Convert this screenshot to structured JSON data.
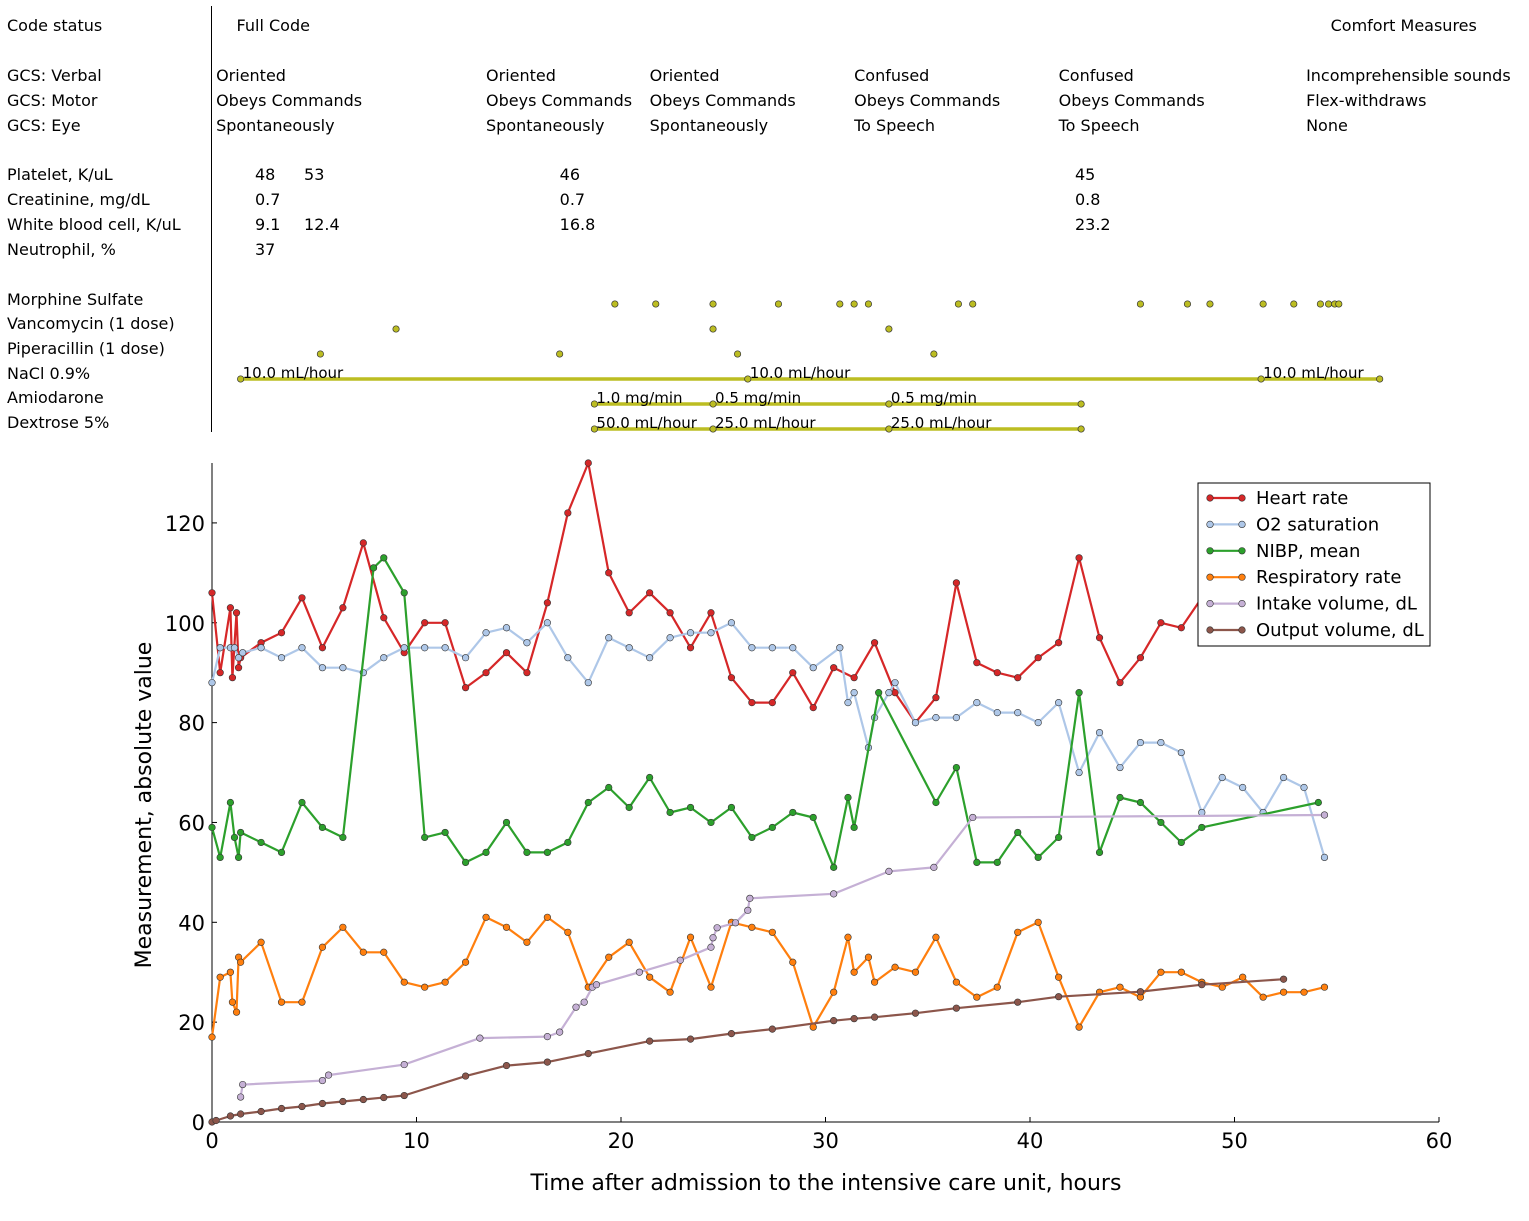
{
  "panel": {
    "rows": {
      "code_status": "Code status",
      "gcs_verbal": "GCS: Verbal",
      "gcs_motor": "GCS: Motor",
      "gcs_eye": "GCS: Eye",
      "platelet": "Platelet, K/uL",
      "creatinine": "Creatinine, mg/dL",
      "wbc": "White blood cell, K/uL",
      "neutrophil": "Neutrophil, %",
      "morphine": "Morphine Sulfate",
      "vancomycin": "Vancomycin (1 dose)",
      "piperacillin": "Piperacillin (1 dose)",
      "nacl": "NaCl 0.9%",
      "amiodarone": "Amiodarone",
      "dextrose": "Dextrose 5%"
    },
    "code_status": [
      {
        "t": 1.2,
        "text": "Full Code"
      },
      {
        "t": 54.7,
        "text": "Comfort Measures"
      }
    ],
    "gcs": [
      {
        "t": 0.2,
        "verbal": "Oriented",
        "motor": "Obeys Commands",
        "eye": "Spontaneously"
      },
      {
        "t": 13.4,
        "verbal": "Oriented",
        "motor": "Obeys Commands",
        "eye": "Spontaneously"
      },
      {
        "t": 21.4,
        "verbal": "Oriented",
        "motor": "Obeys Commands",
        "eye": "Spontaneously"
      },
      {
        "t": 31.4,
        "verbal": "Confused",
        "motor": "Obeys Commands",
        "eye": "To Speech"
      },
      {
        "t": 41.4,
        "verbal": "Confused",
        "motor": "Obeys Commands",
        "eye": "To Speech"
      },
      {
        "t": 53.5,
        "verbal": "Incomprehensible sounds",
        "motor": "Flex-withdraws",
        "eye": "None"
      }
    ],
    "labs": {
      "platelet": [
        {
          "t": 2.1,
          "v": "48"
        },
        {
          "t": 4.5,
          "v": "53"
        },
        {
          "t": 17.0,
          "v": "46"
        },
        {
          "t": 42.2,
          "v": "45"
        }
      ],
      "creatinine": [
        {
          "t": 2.1,
          "v": "0.7"
        },
        {
          "t": 17.0,
          "v": "0.7"
        },
        {
          "t": 42.2,
          "v": "0.8"
        }
      ],
      "wbc": [
        {
          "t": 2.1,
          "v": "9.1"
        },
        {
          "t": 4.5,
          "v": "12.4"
        },
        {
          "t": 17.0,
          "v": "16.8"
        },
        {
          "t": 42.2,
          "v": "23.2"
        }
      ],
      "neutrophil": [
        {
          "t": 2.1,
          "v": "37"
        }
      ]
    },
    "doses": {
      "morphine": [
        19.7,
        21.7,
        24.5,
        27.7,
        30.7,
        31.4,
        32.1,
        36.5,
        37.2,
        45.4,
        47.7,
        48.8,
        51.4,
        52.9,
        54.2,
        54.6,
        54.9,
        55.1
      ],
      "vancomycin": [
        9.0,
        24.5,
        33.1
      ],
      "piperacillin": [
        5.3,
        17.0,
        25.7,
        35.3
      ]
    },
    "infusions": {
      "nacl": [
        {
          "t0": 1.4,
          "t1": 26.2,
          "rate": "10.0 mL/hour"
        },
        {
          "t0": 26.2,
          "t1": 51.3,
          "rate": "10.0 mL/hour"
        },
        {
          "t0": 51.3,
          "t1": 57.1,
          "rate": "10.0 mL/hour"
        }
      ],
      "amiodarone": [
        {
          "t0": 18.7,
          "t1": 24.5,
          "rate": "1.0 mg/min"
        },
        {
          "t0": 24.5,
          "t1": 33.1,
          "rate": "0.5 mg/min"
        },
        {
          "t0": 33.1,
          "t1": 42.5,
          "rate": "0.5 mg/min"
        }
      ],
      "dextrose": [
        {
          "t0": 18.7,
          "t1": 24.5,
          "rate": "50.0 mL/hour"
        },
        {
          "t0": 24.5,
          "t1": 33.1,
          "rate": "25.0 mL/hour"
        },
        {
          "t0": 33.1,
          "t1": 42.5,
          "rate": "25.0 mL/hour"
        }
      ]
    },
    "marker_color": "#bcbd22"
  },
  "chart_data": {
    "type": "line",
    "xlabel": "Time after admission to the intensive care unit, hours",
    "ylabel": "Measurement, absolute value",
    "xlim": [
      0,
      60
    ],
    "ylim": [
      0,
      132
    ],
    "xticks": [
      0,
      10,
      20,
      30,
      40,
      50,
      60
    ],
    "yticks": [
      0,
      20,
      40,
      60,
      80,
      100,
      120
    ],
    "grid": false,
    "legend_position": "top-right",
    "series": [
      {
        "name": "Heart rate",
        "color": "#d62728",
        "x": [
          0.0,
          0.4,
          0.9,
          1.0,
          1.2,
          1.3,
          1.4,
          2.4,
          3.4,
          4.4,
          5.4,
          6.4,
          7.4,
          8.4,
          9.4,
          10.4,
          11.4,
          12.4,
          13.4,
          14.4,
          15.4,
          16.4,
          17.4,
          18.4,
          19.4,
          20.4,
          21.4,
          22.4,
          23.4,
          24.4,
          25.4,
          26.4,
          27.4,
          28.4,
          29.4,
          30.4,
          31.4,
          32.4,
          33.4,
          34.4,
          35.4,
          36.4,
          37.4,
          38.4,
          39.4,
          40.4,
          41.4,
          42.4,
          43.4,
          44.4,
          45.4,
          46.4,
          47.4,
          48.4
        ],
        "y": [
          106,
          90,
          103,
          89,
          102,
          91,
          93,
          96,
          98,
          105,
          95,
          103,
          116,
          101,
          94,
          100,
          100,
          87,
          90,
          94,
          90,
          104,
          122,
          132,
          110,
          102,
          106,
          102,
          95,
          102,
          89,
          84,
          84,
          90,
          83,
          91,
          89,
          96,
          86,
          80,
          85,
          108,
          92,
          90,
          89,
          93,
          96,
          113,
          97,
          88,
          93,
          100,
          99,
          105
        ]
      },
      {
        "name": "O2 saturation",
        "color": "#aec7e8",
        "x": [
          0.0,
          0.4,
          0.9,
          1.1,
          1.3,
          1.5,
          2.4,
          3.4,
          4.4,
          5.4,
          6.4,
          7.4,
          8.4,
          9.4,
          10.4,
          11.4,
          12.4,
          13.4,
          14.4,
          15.4,
          16.4,
          17.4,
          18.4,
          19.4,
          20.4,
          21.4,
          22.4,
          23.4,
          24.4,
          25.4,
          26.4,
          27.4,
          28.4,
          29.4,
          30.7,
          31.1,
          31.4,
          32.1,
          32.4,
          33.1,
          33.4,
          34.4,
          35.4,
          36.4,
          37.4,
          38.4,
          39.4,
          40.4,
          41.4,
          42.4,
          43.4,
          44.4,
          45.4,
          46.4,
          47.4,
          48.4,
          49.4,
          50.4,
          51.4,
          52.4,
          53.4,
          54.4
        ],
        "y": [
          88,
          95,
          95,
          95,
          93,
          94,
          95,
          93,
          95,
          91,
          91,
          90,
          93,
          95,
          95,
          95,
          93,
          98,
          99,
          96,
          100,
          93,
          88,
          97,
          95,
          93,
          97,
          98,
          98,
          100,
          95,
          95,
          95,
          91,
          95,
          84,
          86,
          75,
          81,
          86,
          88,
          80,
          81,
          81,
          84,
          82,
          82,
          80,
          84,
          70,
          78,
          71,
          76,
          76,
          74,
          62,
          69,
          67,
          62,
          69,
          67,
          53
        ]
      },
      {
        "name": "NIBP, mean",
        "color": "#2ca02c",
        "x": [
          0.0,
          0.4,
          0.9,
          1.1,
          1.3,
          1.4,
          2.4,
          3.4,
          4.4,
          5.4,
          6.4,
          7.9,
          8.4,
          9.4,
          10.4,
          11.4,
          12.4,
          13.4,
          14.4,
          15.4,
          16.4,
          17.4,
          18.4,
          19.4,
          20.4,
          21.4,
          22.4,
          23.4,
          24.4,
          25.4,
          26.4,
          27.4,
          28.4,
          29.4,
          30.4,
          31.1,
          31.4,
          32.6,
          35.4,
          36.4,
          37.4,
          38.4,
          39.4,
          40.4,
          41.4,
          42.4,
          43.4,
          44.4,
          45.4,
          46.4,
          47.4,
          48.4,
          54.1
        ],
        "y": [
          59,
          53,
          64,
          57,
          53,
          58,
          56,
          54,
          64,
          59,
          57,
          111,
          113,
          106,
          57,
          58,
          52,
          54,
          60,
          54,
          54,
          56,
          64,
          67,
          63,
          69,
          62,
          63,
          60,
          63,
          57,
          59,
          62,
          61,
          51,
          65,
          59,
          86,
          64,
          71,
          52,
          52,
          58,
          53,
          57,
          86,
          54,
          65,
          64,
          60,
          56,
          59,
          64
        ]
      },
      {
        "name": "Respiratory rate",
        "color": "#ff7f0e",
        "x": [
          0.0,
          0.4,
          0.9,
          1.0,
          1.2,
          1.3,
          1.4,
          2.4,
          3.4,
          4.4,
          5.4,
          6.4,
          7.4,
          8.4,
          9.4,
          10.4,
          11.4,
          12.4,
          13.4,
          14.4,
          15.4,
          16.4,
          17.4,
          18.4,
          19.4,
          20.4,
          21.4,
          22.4,
          23.4,
          24.4,
          25.4,
          26.4,
          27.4,
          28.4,
          29.4,
          30.4,
          31.1,
          31.4,
          32.1,
          32.4,
          33.4,
          34.4,
          35.4,
          36.4,
          37.4,
          38.4,
          39.4,
          40.4,
          41.4,
          42.4,
          43.4,
          44.4,
          45.4,
          46.4,
          47.4,
          48.4,
          49.4,
          50.4,
          51.4,
          52.4,
          53.4,
          54.4
        ],
        "y": [
          17,
          29,
          30,
          24,
          22,
          33,
          32,
          36,
          24,
          24,
          35,
          39,
          34,
          34,
          28,
          27,
          28,
          32,
          41,
          39,
          36,
          41,
          38,
          27,
          33,
          36,
          29,
          26,
          37,
          27,
          40,
          39,
          38,
          32,
          19,
          26,
          37,
          30,
          33,
          28,
          31,
          30,
          37,
          28,
          25,
          27,
          38,
          40,
          29,
          19,
          26,
          27,
          25,
          30,
          30,
          28,
          27,
          29,
          25,
          26,
          26,
          27
        ]
      },
      {
        "name": "Intake volume, dL",
        "color": "#c5b0d5",
        "x": [
          1.4,
          1.5,
          5.4,
          5.7,
          9.4,
          13.1,
          16.4,
          17.0,
          17.8,
          18.2,
          18.6,
          18.8,
          20.9,
          22.9,
          24.4,
          24.5,
          24.7,
          25.6,
          26.2,
          26.3,
          30.4,
          33.1,
          35.3,
          37.2,
          54.4
        ],
        "y": [
          5,
          7.5,
          8.3,
          9.4,
          11.5,
          16.8,
          17.1,
          18.0,
          23.0,
          24.0,
          27.0,
          27.5,
          30.0,
          32.4,
          35.0,
          36.9,
          38.9,
          39.9,
          42.4,
          44.8,
          45.7,
          50.2,
          51.0,
          61.0,
          61.5
        ]
      },
      {
        "name": "Output volume, dL",
        "color": "#8c564b",
        "x": [
          0.0,
          0.2,
          0.9,
          1.4,
          2.4,
          3.4,
          4.4,
          5.4,
          6.4,
          7.4,
          8.4,
          9.4,
          12.4,
          14.4,
          16.4,
          18.4,
          21.4,
          23.4,
          25.4,
          27.4,
          30.4,
          31.4,
          32.4,
          34.4,
          36.4,
          39.4,
          41.4,
          45.4,
          48.4,
          52.4
        ],
        "y": [
          0,
          0.3,
          1.2,
          1.6,
          2.1,
          2.7,
          3.1,
          3.7,
          4.1,
          4.5,
          4.9,
          5.3,
          9.2,
          11.3,
          12.0,
          13.7,
          16.2,
          16.6,
          17.7,
          18.6,
          20.3,
          20.7,
          21.0,
          21.8,
          22.8,
          24.0,
          25.1,
          26.1,
          27.5,
          28.6
        ]
      }
    ]
  }
}
